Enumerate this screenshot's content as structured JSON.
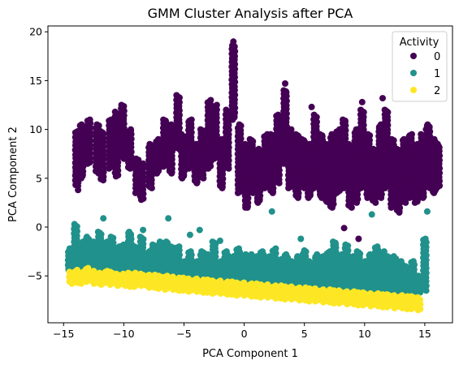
{
  "chart_data": {
    "type": "scatter",
    "title": "GMM Cluster Analysis after PCA",
    "xlabel": "PCA Component 1",
    "ylabel": "PCA Component 2",
    "xlim": [
      -16.3,
      17.3
    ],
    "ylim": [
      -9.8,
      20.6
    ],
    "xticks": [
      -15,
      -10,
      -5,
      0,
      5,
      10,
      15
    ],
    "yticks": [
      -5,
      0,
      5,
      10,
      15,
      20
    ],
    "grid": false,
    "legend": {
      "title": "Activity",
      "placement": "top-right"
    },
    "series": [
      {
        "name": "0",
        "color": "#440154",
        "strips": [
          [
            -13.9,
            4.2,
            9.8
          ],
          [
            -13.5,
            5.0,
            10.5
          ],
          [
            -12.9,
            6.5,
            11.0
          ],
          [
            -12.2,
            5.5,
            10.5
          ],
          [
            -11.8,
            4.8,
            9.8
          ],
          [
            -11.1,
            6.0,
            11.0
          ],
          [
            -10.6,
            5.2,
            11.8
          ],
          [
            -10.1,
            7.0,
            12.5
          ],
          [
            -9.5,
            6.0,
            10.0
          ],
          [
            -8.9,
            3.5,
            7.0
          ],
          [
            -8.5,
            2.8,
            6.5
          ],
          [
            -7.8,
            4.0,
            8.5
          ],
          [
            -7.2,
            5.5,
            9.0
          ],
          [
            -6.6,
            6.2,
            11.0
          ],
          [
            -6.1,
            5.5,
            10.5
          ],
          [
            -5.5,
            8.0,
            13.5
          ],
          [
            -5.1,
            5.0,
            9.5
          ],
          [
            -4.5,
            6.0,
            11.0
          ],
          [
            -4.0,
            4.5,
            8.5
          ],
          [
            -3.5,
            5.0,
            10.0
          ],
          [
            -2.9,
            6.0,
            13.0
          ],
          [
            -2.4,
            7.0,
            12.5
          ],
          [
            -1.9,
            4.0,
            9.0
          ],
          [
            -1.4,
            6.0,
            12.0
          ],
          [
            -0.9,
            11.0,
            18.6
          ],
          [
            -0.4,
            3.5,
            10.5
          ],
          [
            0.2,
            2.0,
            8.5
          ],
          [
            0.6,
            3.5,
            9.0
          ],
          [
            1.2,
            2.5,
            8.0
          ],
          [
            1.8,
            4.0,
            9.5
          ],
          [
            2.3,
            3.5,
            9.5
          ],
          [
            2.8,
            4.5,
            11.5
          ],
          [
            3.4,
            6.5,
            14.0
          ],
          [
            3.8,
            4.0,
            10.0
          ],
          [
            4.4,
            3.0,
            9.5
          ],
          [
            4.9,
            4.0,
            9.0
          ],
          [
            5.4,
            3.0,
            8.5
          ],
          [
            5.9,
            4.0,
            11.5
          ],
          [
            6.4,
            3.0,
            9.5
          ],
          [
            6.9,
            2.5,
            8.5
          ],
          [
            7.3,
            2.0,
            9.5
          ],
          [
            7.8,
            3.5,
            10.0
          ],
          [
            8.3,
            4.0,
            11.0
          ],
          [
            8.8,
            2.0,
            8.5
          ],
          [
            9.3,
            2.5,
            10.0
          ],
          [
            9.8,
            4.0,
            12.0
          ],
          [
            10.3,
            3.0,
            9.5
          ],
          [
            10.8,
            2.5,
            8.0
          ],
          [
            11.3,
            3.0,
            10.5
          ],
          [
            11.8,
            4.0,
            12.0
          ],
          [
            12.3,
            2.0,
            9.0
          ],
          [
            12.8,
            1.5,
            8.0
          ],
          [
            13.3,
            2.5,
            9.0
          ],
          [
            13.8,
            3.0,
            9.5
          ],
          [
            14.3,
            2.5,
            8.5
          ],
          [
            14.8,
            3.0,
            9.5
          ],
          [
            15.3,
            4.0,
            10.5
          ],
          [
            15.8,
            3.5,
            9.0
          ],
          [
            16.1,
            4.0,
            8.5
          ]
        ],
        "extra": [
          [
            -13.8,
            3.8
          ],
          [
            -0.9,
            19.0
          ],
          [
            0.1,
            2.0
          ],
          [
            3.4,
            14.7
          ],
          [
            5.6,
            12.3
          ],
          [
            9.8,
            12.8
          ],
          [
            11.5,
            13.2
          ],
          [
            15.1,
            10.0
          ],
          [
            8.3,
            -0.1
          ],
          [
            9.5,
            -1.2
          ]
        ]
      },
      {
        "name": "1",
        "color": "#21918c",
        "strips": [
          [
            -14.5,
            -4.6,
            -2.2
          ],
          [
            -14.0,
            -4.4,
            0.3
          ],
          [
            -13.5,
            -4.5,
            -1.5
          ],
          [
            -13.0,
            -4.6,
            -1.0
          ],
          [
            -12.5,
            -4.4,
            -1.5
          ],
          [
            -12.0,
            -4.7,
            -0.5
          ],
          [
            -11.5,
            -4.0,
            -1.5
          ],
          [
            -11.0,
            -4.5,
            -1.0
          ],
          [
            -10.5,
            -4.8,
            -2.0
          ],
          [
            -10.0,
            -4.8,
            -1.8
          ],
          [
            -9.5,
            -4.7,
            -0.5
          ],
          [
            -9.0,
            -4.6,
            -2.0
          ],
          [
            -8.5,
            -4.5,
            -1.0
          ],
          [
            -8.0,
            -4.8,
            -2.5
          ],
          [
            -7.5,
            -4.6,
            -1.8
          ],
          [
            -7.0,
            -5.0,
            -1.5
          ],
          [
            -6.5,
            -4.8,
            -1.5
          ],
          [
            -6.0,
            -4.9,
            -2.0
          ],
          [
            -5.5,
            -5.0,
            -2.0
          ],
          [
            -5.0,
            -5.2,
            -3.5
          ],
          [
            -4.5,
            -5.2,
            -2.5
          ],
          [
            -4.0,
            -5.3,
            -3.5
          ],
          [
            -3.5,
            -5.3,
            -2.5
          ],
          [
            -3.0,
            -5.4,
            -2.8
          ],
          [
            -2.5,
            -5.4,
            -1.5
          ],
          [
            -2.0,
            -5.3,
            -3.5
          ],
          [
            -1.5,
            -5.5,
            -2.5
          ],
          [
            -1.0,
            -5.5,
            -3.0
          ],
          [
            -0.5,
            -5.4,
            -2.2
          ],
          [
            0.0,
            -5.6,
            -2.8
          ],
          [
            0.5,
            -5.7,
            -3.2
          ],
          [
            1.0,
            -5.6,
            -3.0
          ],
          [
            1.5,
            -5.7,
            -2.5
          ],
          [
            2.0,
            -5.8,
            -3.0
          ],
          [
            2.5,
            -5.8,
            -2.2
          ],
          [
            3.0,
            -5.8,
            -3.3
          ],
          [
            3.5,
            -6.0,
            -2.8
          ],
          [
            4.0,
            -6.0,
            -3.5
          ],
          [
            4.5,
            -6.0,
            -3.0
          ],
          [
            5.0,
            -6.0,
            -2.4
          ],
          [
            5.5,
            -6.2,
            -3.5
          ],
          [
            6.0,
            -6.2,
            -2.8
          ],
          [
            6.5,
            -6.2,
            -3.0
          ],
          [
            7.0,
            -6.4,
            -2.5
          ],
          [
            7.5,
            -6.4,
            -1.5
          ],
          [
            8.0,
            -6.5,
            -2.8
          ],
          [
            8.5,
            -6.5,
            -1.8
          ],
          [
            9.0,
            -6.6,
            -3.0
          ],
          [
            9.5,
            -6.6,
            -2.5
          ],
          [
            10.0,
            -6.7,
            -3.5
          ],
          [
            10.5,
            -6.7,
            -2.8
          ],
          [
            11.0,
            -6.8,
            -2.0
          ],
          [
            11.5,
            -6.8,
            -2.5
          ],
          [
            12.0,
            -7.0,
            -3.0
          ],
          [
            12.5,
            -7.0,
            -3.0
          ],
          [
            13.0,
            -7.0,
            -3.5
          ],
          [
            13.5,
            -7.2,
            -4.0
          ],
          [
            14.0,
            -7.2,
            -3.5
          ],
          [
            14.5,
            -6.8,
            -5.0
          ],
          [
            15.0,
            -6.5,
            -1.2
          ]
        ],
        "extra": [
          [
            -11.7,
            0.9
          ],
          [
            -8.4,
            -0.3
          ],
          [
            -6.3,
            0.9
          ],
          [
            -4.5,
            -0.8
          ],
          [
            -3.7,
            -0.3
          ],
          [
            2.3,
            1.6
          ],
          [
            4.7,
            -1.2
          ],
          [
            10.6,
            1.3
          ],
          [
            15.2,
            1.6
          ],
          [
            -2.0,
            -1.4
          ],
          [
            0.6,
            -2.8
          ]
        ]
      },
      {
        "name": "2",
        "color": "#fde725",
        "strips": [
          [
            -14.4,
            -5.8,
            -4.6
          ],
          [
            -14.0,
            -5.7,
            -4.4
          ],
          [
            -13.5,
            -5.8,
            -4.6
          ],
          [
            -13.0,
            -5.6,
            -4.2
          ],
          [
            -12.5,
            -5.8,
            -4.5
          ],
          [
            -12.0,
            -5.9,
            -4.7
          ],
          [
            -11.5,
            -5.7,
            -4.5
          ],
          [
            -11.0,
            -5.9,
            -4.6
          ],
          [
            -10.5,
            -6.0,
            -4.8
          ],
          [
            -10.0,
            -6.0,
            -4.8
          ],
          [
            -9.5,
            -6.1,
            -4.7
          ],
          [
            -9.0,
            -6.1,
            -4.7
          ],
          [
            -8.5,
            -6.0,
            -4.8
          ],
          [
            -8.0,
            -6.2,
            -4.9
          ],
          [
            -7.5,
            -6.2,
            -4.9
          ],
          [
            -7.0,
            -6.3,
            -5.0
          ],
          [
            -6.5,
            -6.4,
            -5.0
          ],
          [
            -6.0,
            -6.4,
            -5.1
          ],
          [
            -5.5,
            -6.5,
            -5.2
          ],
          [
            -5.0,
            -6.5,
            -5.2
          ],
          [
            -4.5,
            -6.6,
            -5.3
          ],
          [
            -4.0,
            -6.6,
            -5.3
          ],
          [
            -3.5,
            -6.7,
            -5.4
          ],
          [
            -3.0,
            -6.7,
            -5.4
          ],
          [
            -2.5,
            -6.8,
            -5.5
          ],
          [
            -2.0,
            -6.8,
            -5.5
          ],
          [
            -1.5,
            -6.9,
            -5.6
          ],
          [
            -1.0,
            -6.9,
            -5.6
          ],
          [
            -0.5,
            -7.0,
            -5.7
          ],
          [
            0.0,
            -7.0,
            -5.7
          ],
          [
            0.5,
            -7.1,
            -5.8
          ],
          [
            1.0,
            -7.1,
            -5.8
          ],
          [
            1.5,
            -7.2,
            -5.9
          ],
          [
            2.0,
            -7.2,
            -5.9
          ],
          [
            2.5,
            -7.3,
            -6.0
          ],
          [
            3.0,
            -7.3,
            -6.0
          ],
          [
            3.5,
            -7.4,
            -6.1
          ],
          [
            4.0,
            -7.4,
            -6.1
          ],
          [
            4.5,
            -7.5,
            -6.2
          ],
          [
            5.0,
            -7.5,
            -6.2
          ],
          [
            5.5,
            -7.6,
            -6.3
          ],
          [
            6.0,
            -7.6,
            -6.3
          ],
          [
            6.5,
            -7.7,
            -6.4
          ],
          [
            7.0,
            -7.7,
            -6.4
          ],
          [
            7.5,
            -7.8,
            -6.5
          ],
          [
            8.0,
            -7.8,
            -6.5
          ],
          [
            8.5,
            -7.9,
            -6.6
          ],
          [
            9.0,
            -7.9,
            -6.6
          ],
          [
            9.5,
            -8.0,
            -6.7
          ],
          [
            10.0,
            -8.0,
            -6.7
          ],
          [
            10.5,
            -8.1,
            -6.8
          ],
          [
            11.0,
            -8.1,
            -6.8
          ],
          [
            11.5,
            -8.2,
            -6.9
          ],
          [
            12.0,
            -8.2,
            -6.9
          ],
          [
            12.5,
            -8.3,
            -7.0
          ],
          [
            13.0,
            -8.3,
            -7.0
          ],
          [
            13.5,
            -8.4,
            -7.1
          ],
          [
            14.0,
            -8.4,
            -7.1
          ],
          [
            14.5,
            -8.5,
            -7.2
          ]
        ],
        "extra": []
      }
    ]
  }
}
